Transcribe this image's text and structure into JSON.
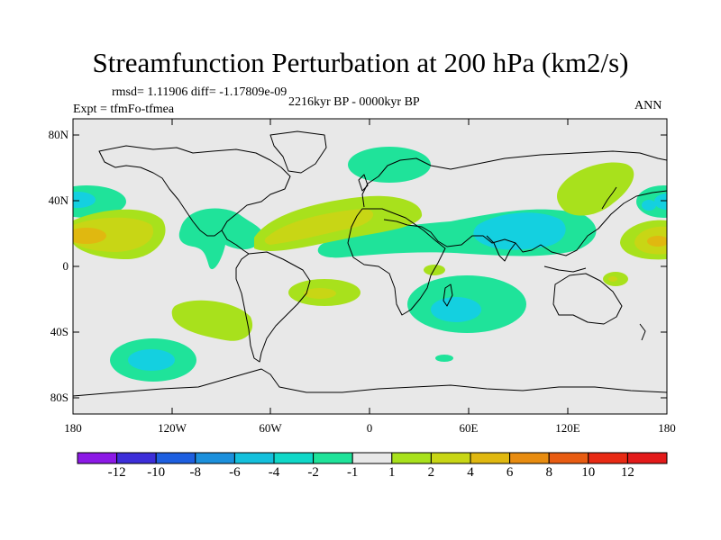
{
  "title": "Streamfunction Perturbation at 200 hPa (km2/s)",
  "stats": "rmsd= 1.11906 diff= -1.17809e-09",
  "expt": "Expt = tfmFo-tfmea",
  "period": "2216kyr BP - 0000kyr BP",
  "season": "ANN",
  "lat_labels": [
    "80N",
    "40N",
    "0",
    "40S",
    "80S"
  ],
  "lon_labels": [
    "180",
    "120W",
    "60W",
    "0",
    "60E",
    "120E",
    "180"
  ],
  "colorbar": {
    "labels": [
      "-12",
      "-10",
      "-8",
      "-6",
      "-4",
      "-2",
      "-1",
      "1",
      "2",
      "4",
      "6",
      "8",
      "10",
      "12"
    ],
    "colors": [
      "#8c19e6",
      "#3d2ed9",
      "#1e5fe0",
      "#1c90dc",
      "#14c0dc",
      "#10d8c8",
      "#1fe39a",
      "#e8e8e8",
      "#a8e11c",
      "#c8d615",
      "#e0b810",
      "#e88c10",
      "#e85c12",
      "#e82a14",
      "#e31a1a"
    ]
  },
  "map_colors": {
    "background": "#e8e8e8",
    "neg1": "#1fe39a",
    "neg2": "#14d0e0",
    "pos1": "#a8e11c",
    "pos2": "#c8d615",
    "pos3": "#e0b810"
  }
}
